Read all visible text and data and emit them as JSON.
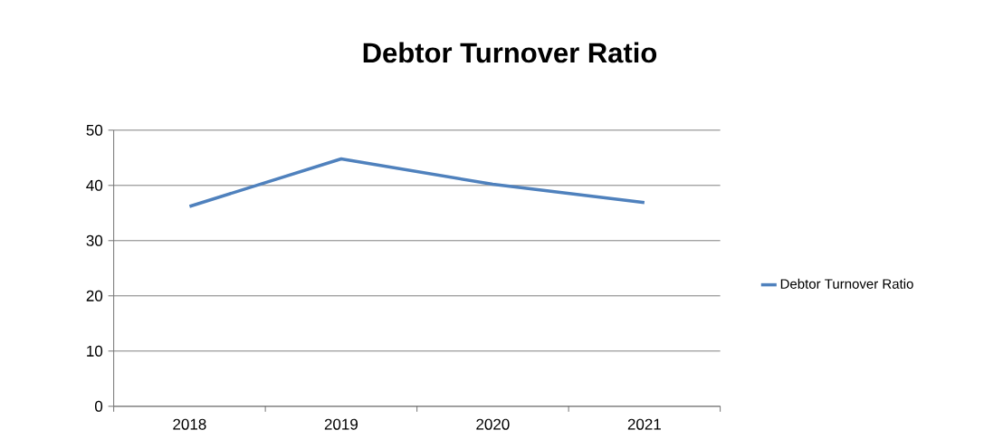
{
  "chart_data": {
    "type": "line",
    "title": "Debtor Turnover Ratio",
    "categories": [
      "2018",
      "2019",
      "2020",
      "2021"
    ],
    "series": [
      {
        "name": "Debtor Turnover Ratio",
        "color": "#4f81bd",
        "values": [
          36.2,
          44.8,
          40.2,
          36.9
        ]
      }
    ],
    "ylim": [
      0,
      50
    ],
    "yticks": [
      0,
      10,
      20,
      30,
      40,
      50
    ],
    "grid": "y",
    "legend": "right",
    "marker": "none",
    "line_style": "solid"
  }
}
